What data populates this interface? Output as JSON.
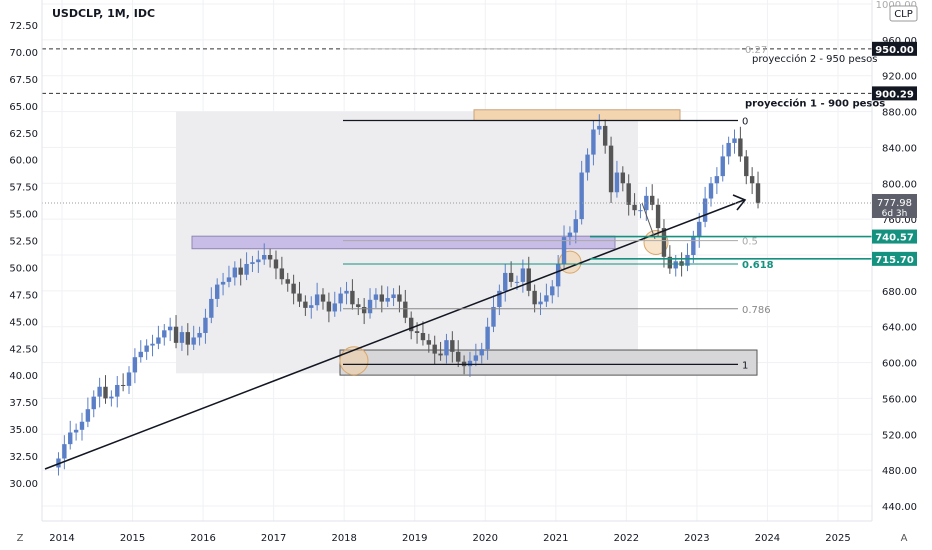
{
  "header": {
    "symbol": "USDCLP, 1M, IDC",
    "currency": "CLP"
  },
  "corner_labels": {
    "left": "Z",
    "right": "A"
  },
  "colors": {
    "up": "#5b7fc7",
    "down": "#555555",
    "teal": "#15917f",
    "orange_fill": "#f3d5b0",
    "purple_fill": "#c8bde6",
    "gray_fill": "#d7d7da",
    "range_fill": "#ededf0"
  },
  "price_tag": {
    "value": "777.98",
    "countdown": "6d 3h"
  },
  "chart_data": {
    "type": "candlestick",
    "left_axis": {
      "ticks": [
        "30.00",
        "32.50",
        "35.00",
        "37.50",
        "40.00",
        "42.50",
        "45.00",
        "47.50",
        "50.00",
        "52.50",
        "55.00",
        "57.50",
        "60.00",
        "62.50",
        "65.00",
        "67.50",
        "70.00",
        "72.50"
      ],
      "range": [
        27.5,
        75.0
      ]
    },
    "right_axis": {
      "ticks": [
        "440.00",
        "480.00",
        "520.00",
        "560.00",
        "600.00",
        "640.00",
        "680.00",
        "720.00",
        "760.00",
        "800.00",
        "840.00",
        "880.00",
        "920.00",
        "960.00",
        "1000.00"
      ],
      "range": [
        400,
        1030
      ]
    },
    "x_axis": {
      "ticks": [
        "2014",
        "2015",
        "2016",
        "2017",
        "2018",
        "2019",
        "2020",
        "2021",
        "2022",
        "2023",
        "2024",
        "2025"
      ],
      "range": [
        2013.75,
        2026.0
      ]
    },
    "candles_anchor": {
      "start": 2013.95,
      "step_years": 0.08333
    },
    "closes": [
      493,
      509,
      522,
      525,
      534,
      548,
      562,
      573,
      560,
      562,
      575,
      574,
      589,
      606,
      612,
      619,
      621,
      628,
      636,
      640,
      622,
      634,
      620,
      628,
      633,
      650,
      671,
      687,
      690,
      695,
      706,
      698,
      710,
      712,
      715,
      720,
      715,
      705,
      693,
      688,
      677,
      668,
      661,
      664,
      676,
      668,
      657,
      666,
      677,
      680,
      665,
      662,
      655,
      670,
      676,
      668,
      672,
      676,
      668,
      650,
      635,
      633,
      625,
      620,
      610,
      608,
      625,
      612,
      601,
      596,
      602,
      608,
      615,
      640,
      662,
      680,
      700,
      690,
      690,
      705,
      680,
      665,
      668,
      675,
      685,
      710,
      740,
      745,
      760,
      812,
      832,
      860,
      864,
      842,
      790,
      812,
      800,
      776,
      770,
      770,
      786,
      776,
      750,
      718,
      705,
      713,
      708,
      720,
      740,
      757,
      783,
      800,
      808,
      830,
      845,
      850,
      830,
      808,
      800,
      778
    ]
  },
  "levels": [
    {
      "label": "0",
      "value": 870
    },
    {
      "label": "0.5",
      "value": 736
    },
    {
      "label": "0.618",
      "value": 710
    },
    {
      "label": "0.786",
      "value": 660
    },
    {
      "label": "1",
      "value": 598
    }
  ],
  "projections": [
    {
      "label": "proyección 2 -  950 pesos",
      "value": 950,
      "tag": "950.00",
      "fib": "0.27"
    },
    {
      "label": "proyección 1 -  900 pesos",
      "value": 900.29,
      "tag": "900.29"
    }
  ],
  "price_tags": [
    {
      "value": 740.57,
      "text": "740.57"
    },
    {
      "value": 715.7,
      "text": "715.70"
    }
  ]
}
